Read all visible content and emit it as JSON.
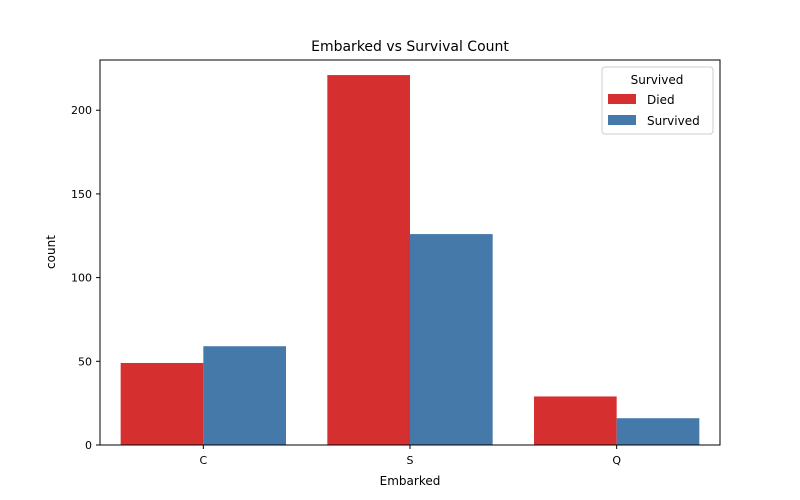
{
  "chart_data": {
    "type": "bar",
    "title": "Embarked vs Survival Count",
    "xlabel": "Embarked",
    "ylabel": "count",
    "categories": [
      "C",
      "S",
      "Q"
    ],
    "series": [
      {
        "name": "Died",
        "color": "#d62f2f",
        "values": [
          49,
          221,
          29
        ]
      },
      {
        "name": "Survived",
        "color": "#4479aa",
        "values": [
          59,
          126,
          16
        ]
      }
    ],
    "ylim": [
      0,
      230
    ],
    "yticks": [
      0,
      50,
      100,
      150,
      200
    ],
    "legend": {
      "title": "Survived",
      "placement": "top-right"
    },
    "grid": false
  }
}
